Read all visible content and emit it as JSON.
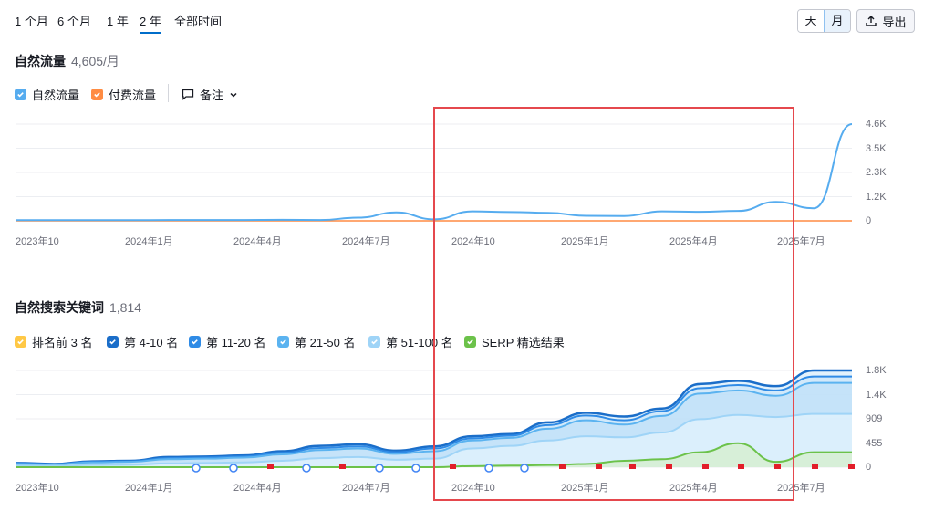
{
  "range_tabs": [
    "1 个月",
    "6 个月",
    "1 年",
    "2 年",
    "全部时间"
  ],
  "active_range": "2 年",
  "period_toggle": {
    "day": "天",
    "month": "月",
    "active": "月"
  },
  "export_label": "导出",
  "traffic": {
    "title": "自然流量",
    "value": "4,605/月",
    "legend": {
      "organic": "自然流量",
      "paid": "付费流量",
      "notes": "备注"
    },
    "y_ticks": [
      "4.6K",
      "3.5K",
      "2.3K",
      "1.2K",
      "0"
    ],
    "x_ticks": [
      "2023年10",
      "2024年1月",
      "2024年4月",
      "2024年7月",
      "2024年10",
      "2025年1月",
      "2025年4月",
      "2025年7月"
    ]
  },
  "keywords": {
    "title": "自然搜索关键词",
    "value": "1,814",
    "legend": [
      "排名前 3 名",
      "第 4-10 名",
      "第 11-20 名",
      "第 21-50 名",
      "第 51-100 名",
      "SERP 精选结果"
    ],
    "y_ticks": [
      "1.8K",
      "1.4K",
      "909",
      "455",
      "0"
    ],
    "x_ticks": [
      "2023年10",
      "2024年1月",
      "2024年4月",
      "2024年7月",
      "2024年10",
      "2025年1月",
      "2025年4月",
      "2025年7月"
    ]
  },
  "colors": {
    "accent": "#006dca",
    "organic": "#56acef",
    "paid": "#ff8c43",
    "top3": "#ffc845",
    "pos4_10": "#1b6ec9",
    "pos11_20": "#2f8be6",
    "pos21_50": "#5bb3f0",
    "pos51_100": "#9fd4f7",
    "serp": "#6cc24a",
    "highlight": "#e5484d"
  },
  "chart_data": [
    {
      "type": "line",
      "title": "自然流量",
      "x": [
        "2023-10",
        "2023-11",
        "2023-12",
        "2024-01",
        "2024-02",
        "2024-03",
        "2024-04",
        "2024-05",
        "2024-06",
        "2024-07",
        "2024-08",
        "2024-09",
        "2024-10",
        "2024-11",
        "2024-12",
        "2025-01",
        "2025-02",
        "2025-03",
        "2025-04",
        "2025-05",
        "2025-06",
        "2025-07",
        "2025-08"
      ],
      "series": [
        {
          "name": "自然流量",
          "values": [
            30,
            30,
            30,
            30,
            40,
            40,
            40,
            50,
            40,
            150,
            400,
            70,
            450,
            420,
            380,
            240,
            230,
            450,
            430,
            470,
            900,
            600,
            4605
          ]
        },
        {
          "name": "付费流量",
          "values": [
            0,
            0,
            0,
            0,
            0,
            0,
            0,
            0,
            0,
            0,
            0,
            0,
            0,
            0,
            0,
            0,
            0,
            0,
            0,
            0,
            0,
            0,
            0
          ]
        }
      ],
      "ylim": [
        0,
        4605
      ],
      "grid": true
    },
    {
      "type": "area",
      "title": "自然搜索关键词",
      "x": [
        "2023-10",
        "2023-11",
        "2023-12",
        "2024-01",
        "2024-02",
        "2024-03",
        "2024-04",
        "2024-05",
        "2024-06",
        "2024-07",
        "2024-08",
        "2024-09",
        "2024-10",
        "2024-11",
        "2024-12",
        "2025-01",
        "2025-02",
        "2025-03",
        "2025-04",
        "2025-05",
        "2025-06",
        "2025-07",
        "2025-08"
      ],
      "series": [
        {
          "name": "第 4-10 名",
          "values": [
            80,
            60,
            110,
            120,
            190,
            200,
            220,
            300,
            400,
            430,
            310,
            390,
            580,
            620,
            840,
            1020,
            950,
            1100,
            1560,
            1620,
            1520,
            1814,
            1814
          ]
        },
        {
          "name": "第 11-20 名",
          "values": [
            70,
            55,
            100,
            110,
            170,
            180,
            200,
            270,
            360,
            390,
            280,
            350,
            540,
            590,
            790,
            970,
            880,
            1050,
            1480,
            1540,
            1440,
            1700,
            1700
          ]
        },
        {
          "name": "第 21-50 名",
          "values": [
            60,
            50,
            90,
            100,
            150,
            160,
            180,
            240,
            320,
            350,
            250,
            300,
            500,
            550,
            720,
            880,
            800,
            960,
            1380,
            1440,
            1340,
            1580,
            1580
          ]
        },
        {
          "name": "第 51-100 名",
          "values": [
            30,
            25,
            40,
            45,
            70,
            80,
            90,
            120,
            170,
            190,
            140,
            160,
            350,
            400,
            500,
            580,
            560,
            650,
            900,
            980,
            940,
            1000,
            1000
          ]
        },
        {
          "name": "SERP 精选结果",
          "values": [
            0,
            0,
            0,
            0,
            0,
            0,
            0,
            0,
            0,
            0,
            0,
            0,
            20,
            30,
            40,
            60,
            120,
            150,
            280,
            450,
            100,
            280,
            280
          ]
        }
      ],
      "ylim": [
        0,
        1814
      ],
      "grid": true
    }
  ]
}
